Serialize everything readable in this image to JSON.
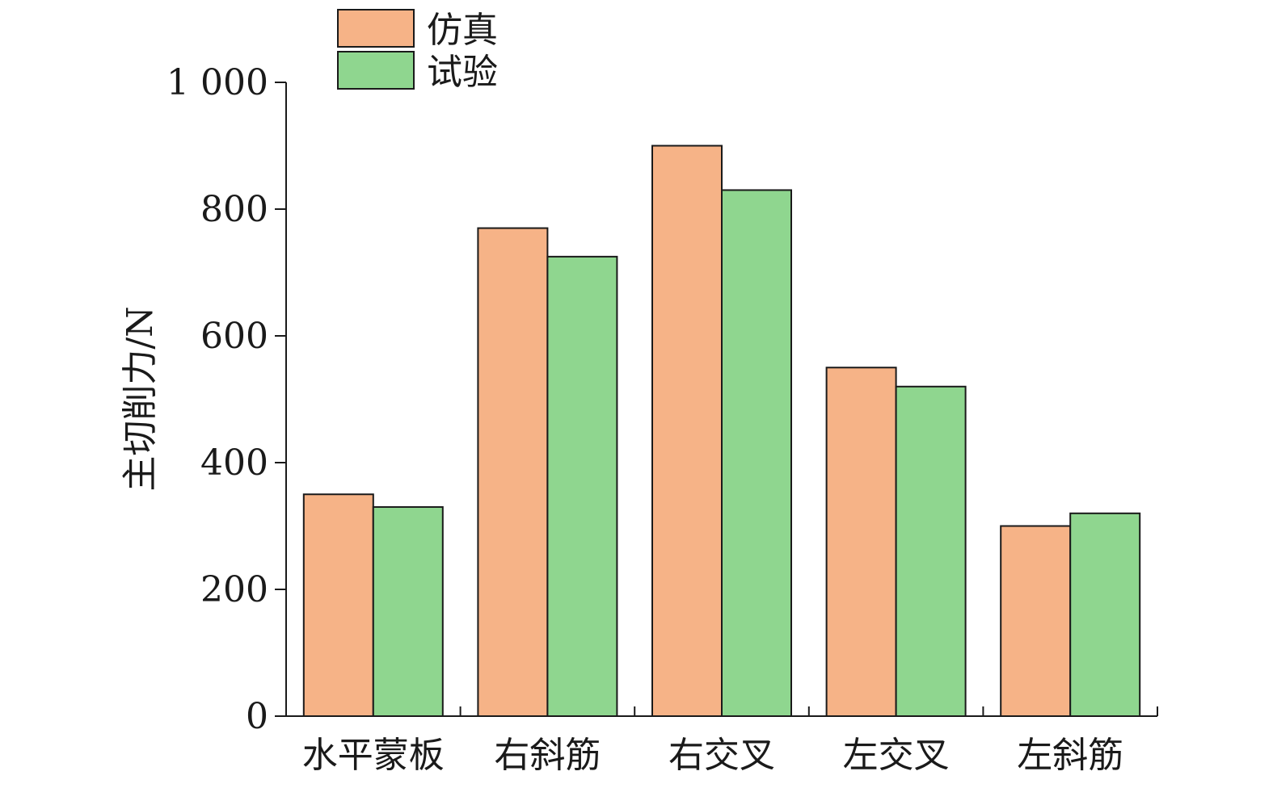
{
  "chart_data": {
    "type": "bar",
    "categories": [
      "水平蒙板",
      "右斜筋",
      "右交叉",
      "左交叉",
      "左斜筋"
    ],
    "series": [
      {
        "name": "仿真",
        "values": [
          350,
          770,
          900,
          550,
          300
        ],
        "color": "#F6B387"
      },
      {
        "name": "试验",
        "values": [
          330,
          725,
          830,
          520,
          320
        ],
        "color": "#8FD68F"
      }
    ],
    "ylabel": "主切削力/N",
    "ylim": [
      0,
      1000
    ],
    "yticks": [
      0,
      200,
      400,
      600,
      800,
      1000
    ],
    "ytick_labels": [
      "0",
      "200",
      "400",
      "600",
      "800",
      "1 000"
    ],
    "legend_placement": "top-left",
    "grid": false
  }
}
